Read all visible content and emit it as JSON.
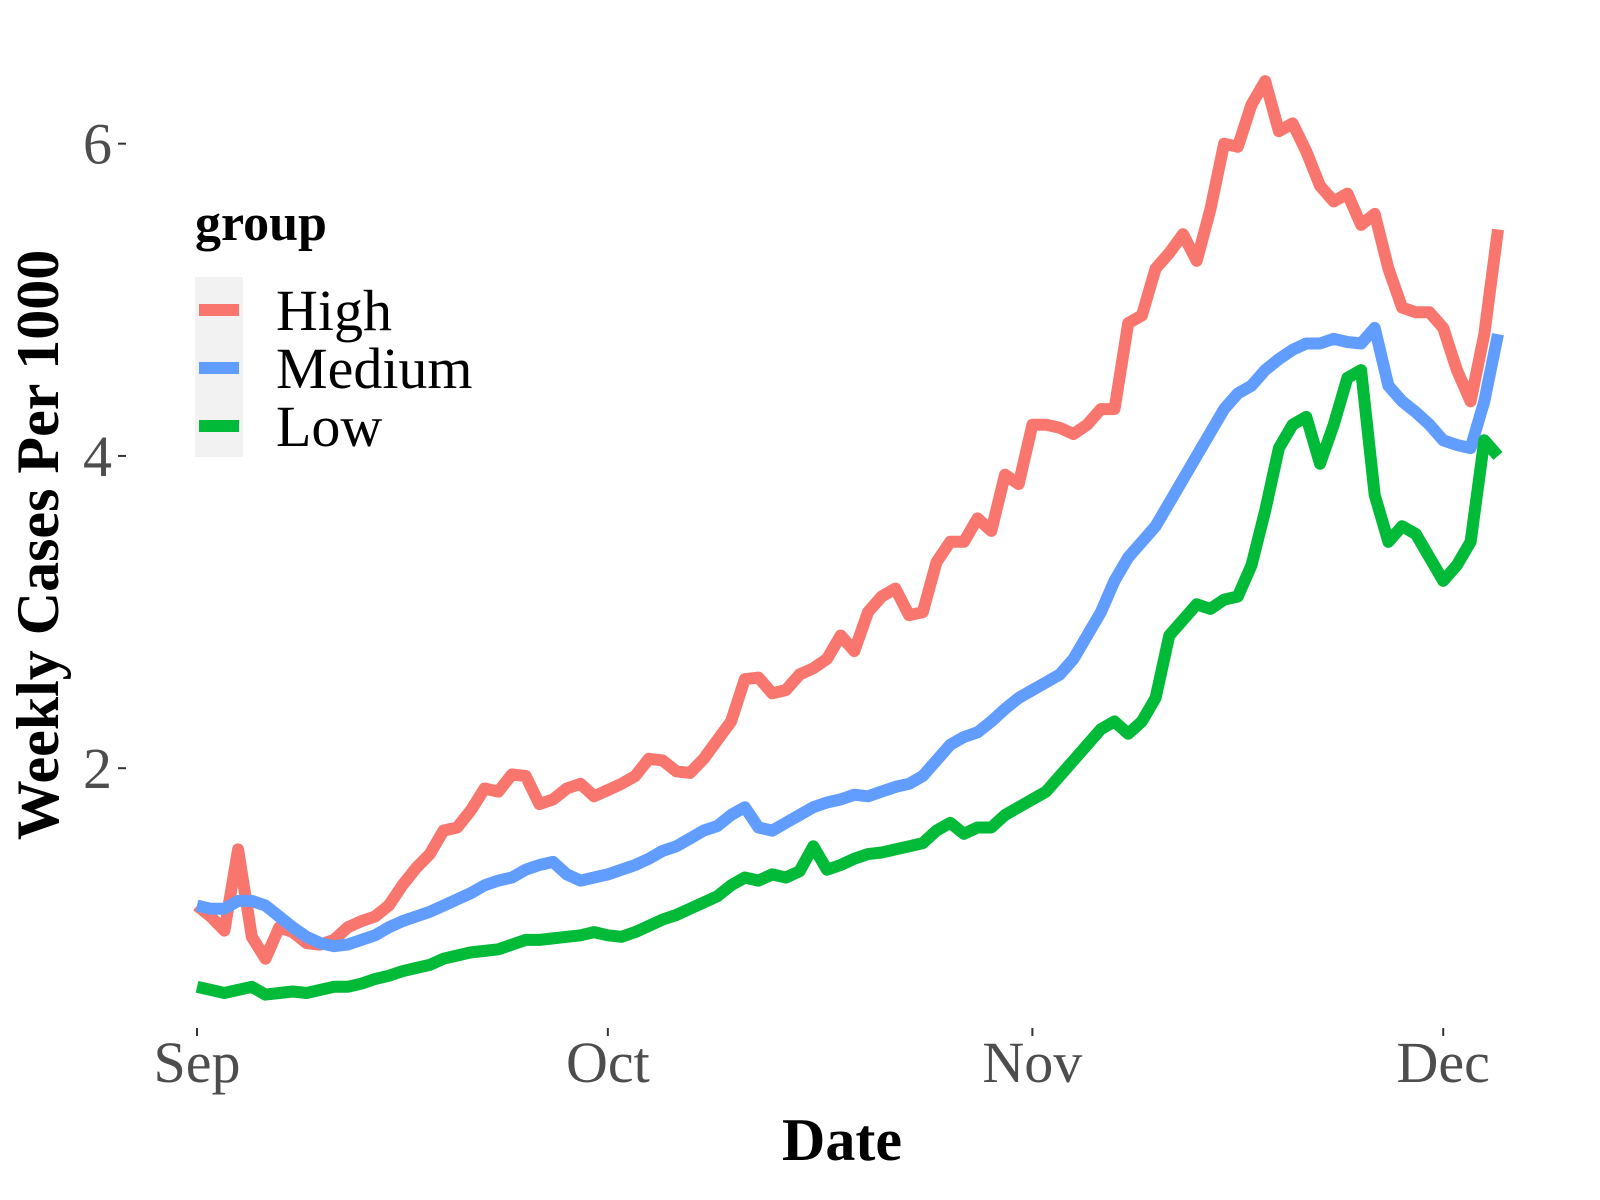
{
  "chart_data": {
    "type": "line",
    "title": "",
    "xlabel": "Date",
    "ylabel": "Weekly Cases Per 1000",
    "x_ticks": [
      {
        "label": "Sep",
        "day": 0
      },
      {
        "label": "Oct",
        "day": 30
      },
      {
        "label": "Nov",
        "day": 61
      },
      {
        "label": "Dec",
        "day": 91
      }
    ],
    "y_ticks": [
      2,
      4,
      6
    ],
    "xlim": [
      0,
      95
    ],
    "ylim": [
      0.4,
      6.6
    ],
    "grid": false,
    "legend": {
      "title": "group",
      "position": "top-left",
      "entries": [
        "High",
        "Medium",
        "Low"
      ]
    },
    "series": [
      {
        "name": "High",
        "color": "#F8766D",
        "points": [
          [
            0,
            1.12
          ],
          [
            1,
            1.05
          ],
          [
            2,
            0.96
          ],
          [
            3,
            1.48
          ],
          [
            4,
            0.92
          ],
          [
            5,
            0.78
          ],
          [
            6,
            0.98
          ],
          [
            7,
            0.95
          ],
          [
            8,
            0.88
          ],
          [
            9,
            0.87
          ],
          [
            10,
            0.9
          ],
          [
            11,
            0.98
          ],
          [
            12,
            1.02
          ],
          [
            13,
            1.05
          ],
          [
            14,
            1.12
          ],
          [
            15,
            1.25
          ],
          [
            16,
            1.36
          ],
          [
            17,
            1.45
          ],
          [
            18,
            1.6
          ],
          [
            19,
            1.62
          ],
          [
            20,
            1.73
          ],
          [
            21,
            1.87
          ],
          [
            22,
            1.85
          ],
          [
            23,
            1.96
          ],
          [
            24,
            1.95
          ],
          [
            25,
            1.77
          ],
          [
            26,
            1.8
          ],
          [
            27,
            1.87
          ],
          [
            28,
            1.9
          ],
          [
            29,
            1.82
          ],
          [
            30,
            1.86
          ],
          [
            31,
            1.9
          ],
          [
            32,
            1.95
          ],
          [
            33,
            2.06
          ],
          [
            34,
            2.05
          ],
          [
            35,
            1.98
          ],
          [
            36,
            1.97
          ],
          [
            37,
            2.06
          ],
          [
            38,
            2.18
          ],
          [
            39,
            2.3
          ],
          [
            40,
            2.57
          ],
          [
            41,
            2.58
          ],
          [
            42,
            2.48
          ],
          [
            43,
            2.5
          ],
          [
            44,
            2.6
          ],
          [
            45,
            2.64
          ],
          [
            46,
            2.7
          ],
          [
            47,
            2.85
          ],
          [
            48,
            2.75
          ],
          [
            49,
            3.0
          ],
          [
            50,
            3.1
          ],
          [
            51,
            3.15
          ],
          [
            52,
            2.98
          ],
          [
            53,
            3.0
          ],
          [
            54,
            3.32
          ],
          [
            55,
            3.45
          ],
          [
            56,
            3.45
          ],
          [
            57,
            3.6
          ],
          [
            58,
            3.52
          ],
          [
            59,
            3.88
          ],
          [
            60,
            3.82
          ],
          [
            61,
            4.2
          ],
          [
            62,
            4.2
          ],
          [
            63,
            4.18
          ],
          [
            64,
            4.14
          ],
          [
            65,
            4.2
          ],
          [
            66,
            4.3
          ],
          [
            67,
            4.3
          ],
          [
            68,
            4.85
          ],
          [
            69,
            4.9
          ],
          [
            70,
            5.2
          ],
          [
            71,
            5.3
          ],
          [
            72,
            5.42
          ],
          [
            73,
            5.25
          ],
          [
            74,
            5.58
          ],
          [
            75,
            6.0
          ],
          [
            76,
            5.98
          ],
          [
            77,
            6.25
          ],
          [
            78,
            6.4
          ],
          [
            79,
            6.08
          ],
          [
            80,
            6.13
          ],
          [
            81,
            5.95
          ],
          [
            82,
            5.73
          ],
          [
            83,
            5.63
          ],
          [
            84,
            5.68
          ],
          [
            85,
            5.48
          ],
          [
            86,
            5.55
          ],
          [
            87,
            5.2
          ],
          [
            88,
            4.95
          ],
          [
            89,
            4.92
          ],
          [
            90,
            4.92
          ],
          [
            91,
            4.82
          ],
          [
            92,
            4.55
          ],
          [
            93,
            4.35
          ],
          [
            94,
            4.78
          ],
          [
            95,
            5.45
          ]
        ]
      },
      {
        "name": "Medium",
        "color": "#619CFF",
        "points": [
          [
            0,
            1.12
          ],
          [
            1,
            1.1
          ],
          [
            2,
            1.1
          ],
          [
            3,
            1.15
          ],
          [
            4,
            1.15
          ],
          [
            5,
            1.12
          ],
          [
            6,
            1.05
          ],
          [
            7,
            0.98
          ],
          [
            8,
            0.92
          ],
          [
            9,
            0.88
          ],
          [
            10,
            0.86
          ],
          [
            11,
            0.87
          ],
          [
            12,
            0.9
          ],
          [
            13,
            0.93
          ],
          [
            14,
            0.98
          ],
          [
            15,
            1.02
          ],
          [
            16,
            1.05
          ],
          [
            17,
            1.08
          ],
          [
            18,
            1.12
          ],
          [
            19,
            1.16
          ],
          [
            20,
            1.2
          ],
          [
            21,
            1.25
          ],
          [
            22,
            1.28
          ],
          [
            23,
            1.3
          ],
          [
            24,
            1.35
          ],
          [
            25,
            1.38
          ],
          [
            26,
            1.4
          ],
          [
            27,
            1.32
          ],
          [
            28,
            1.28
          ],
          [
            29,
            1.3
          ],
          [
            30,
            1.32
          ],
          [
            31,
            1.35
          ],
          [
            32,
            1.38
          ],
          [
            33,
            1.42
          ],
          [
            34,
            1.47
          ],
          [
            35,
            1.5
          ],
          [
            36,
            1.55
          ],
          [
            37,
            1.6
          ],
          [
            38,
            1.63
          ],
          [
            39,
            1.7
          ],
          [
            40,
            1.75
          ],
          [
            41,
            1.62
          ],
          [
            42,
            1.6
          ],
          [
            43,
            1.65
          ],
          [
            44,
            1.7
          ],
          [
            45,
            1.75
          ],
          [
            46,
            1.78
          ],
          [
            47,
            1.8
          ],
          [
            48,
            1.83
          ],
          [
            49,
            1.82
          ],
          [
            50,
            1.85
          ],
          [
            51,
            1.88
          ],
          [
            52,
            1.9
          ],
          [
            53,
            1.95
          ],
          [
            54,
            2.05
          ],
          [
            55,
            2.15
          ],
          [
            56,
            2.2
          ],
          [
            57,
            2.23
          ],
          [
            58,
            2.3
          ],
          [
            59,
            2.38
          ],
          [
            60,
            2.45
          ],
          [
            61,
            2.5
          ],
          [
            62,
            2.55
          ],
          [
            63,
            2.6
          ],
          [
            64,
            2.7
          ],
          [
            65,
            2.85
          ],
          [
            66,
            3.0
          ],
          [
            67,
            3.2
          ],
          [
            68,
            3.35
          ],
          [
            69,
            3.45
          ],
          [
            70,
            3.55
          ],
          [
            71,
            3.7
          ],
          [
            72,
            3.85
          ],
          [
            73,
            4.0
          ],
          [
            74,
            4.15
          ],
          [
            75,
            4.3
          ],
          [
            76,
            4.4
          ],
          [
            77,
            4.45
          ],
          [
            78,
            4.55
          ],
          [
            79,
            4.62
          ],
          [
            80,
            4.68
          ],
          [
            81,
            4.72
          ],
          [
            82,
            4.72
          ],
          [
            83,
            4.75
          ],
          [
            84,
            4.73
          ],
          [
            85,
            4.72
          ],
          [
            86,
            4.82
          ],
          [
            87,
            4.45
          ],
          [
            88,
            4.35
          ],
          [
            89,
            4.28
          ],
          [
            90,
            4.2
          ],
          [
            91,
            4.1
          ],
          [
            92,
            4.07
          ],
          [
            93,
            4.05
          ],
          [
            94,
            4.35
          ],
          [
            95,
            4.78
          ]
        ]
      },
      {
        "name": "Low",
        "color": "#00BA38",
        "points": [
          [
            0,
            0.6
          ],
          [
            1,
            0.58
          ],
          [
            2,
            0.56
          ],
          [
            3,
            0.58
          ],
          [
            4,
            0.6
          ],
          [
            5,
            0.55
          ],
          [
            6,
            0.56
          ],
          [
            7,
            0.57
          ],
          [
            8,
            0.56
          ],
          [
            9,
            0.58
          ],
          [
            10,
            0.6
          ],
          [
            11,
            0.6
          ],
          [
            12,
            0.62
          ],
          [
            13,
            0.65
          ],
          [
            14,
            0.67
          ],
          [
            15,
            0.7
          ],
          [
            16,
            0.72
          ],
          [
            17,
            0.74
          ],
          [
            18,
            0.78
          ],
          [
            19,
            0.8
          ],
          [
            20,
            0.82
          ],
          [
            21,
            0.83
          ],
          [
            22,
            0.84
          ],
          [
            23,
            0.87
          ],
          [
            24,
            0.9
          ],
          [
            25,
            0.9
          ],
          [
            26,
            0.91
          ],
          [
            27,
            0.92
          ],
          [
            28,
            0.93
          ],
          [
            29,
            0.95
          ],
          [
            30,
            0.93
          ],
          [
            31,
            0.92
          ],
          [
            32,
            0.95
          ],
          [
            33,
            0.99
          ],
          [
            34,
            1.03
          ],
          [
            35,
            1.06
          ],
          [
            36,
            1.1
          ],
          [
            37,
            1.14
          ],
          [
            38,
            1.18
          ],
          [
            39,
            1.25
          ],
          [
            40,
            1.3
          ],
          [
            41,
            1.28
          ],
          [
            42,
            1.32
          ],
          [
            43,
            1.3
          ],
          [
            44,
            1.34
          ],
          [
            45,
            1.5
          ],
          [
            46,
            1.35
          ],
          [
            47,
            1.38
          ],
          [
            48,
            1.42
          ],
          [
            49,
            1.45
          ],
          [
            50,
            1.46
          ],
          [
            51,
            1.48
          ],
          [
            52,
            1.5
          ],
          [
            53,
            1.52
          ],
          [
            54,
            1.6
          ],
          [
            55,
            1.65
          ],
          [
            56,
            1.58
          ],
          [
            57,
            1.62
          ],
          [
            58,
            1.62
          ],
          [
            59,
            1.7
          ],
          [
            60,
            1.75
          ],
          [
            61,
            1.8
          ],
          [
            62,
            1.85
          ],
          [
            63,
            1.95
          ],
          [
            64,
            2.05
          ],
          [
            65,
            2.15
          ],
          [
            66,
            2.25
          ],
          [
            67,
            2.3
          ],
          [
            68,
            2.22
          ],
          [
            69,
            2.3
          ],
          [
            70,
            2.45
          ],
          [
            71,
            2.85
          ],
          [
            72,
            2.95
          ],
          [
            73,
            3.05
          ],
          [
            74,
            3.02
          ],
          [
            75,
            3.08
          ],
          [
            76,
            3.1
          ],
          [
            77,
            3.3
          ],
          [
            78,
            3.65
          ],
          [
            79,
            4.05
          ],
          [
            80,
            4.2
          ],
          [
            81,
            4.25
          ],
          [
            82,
            3.95
          ],
          [
            83,
            4.2
          ],
          [
            84,
            4.5
          ],
          [
            85,
            4.55
          ],
          [
            86,
            3.75
          ],
          [
            87,
            3.45
          ],
          [
            88,
            3.55
          ],
          [
            89,
            3.5
          ],
          [
            90,
            3.35
          ],
          [
            91,
            3.2
          ],
          [
            92,
            3.3
          ],
          [
            93,
            3.45
          ],
          [
            94,
            4.1
          ],
          [
            95,
            4.0
          ]
        ]
      }
    ]
  }
}
